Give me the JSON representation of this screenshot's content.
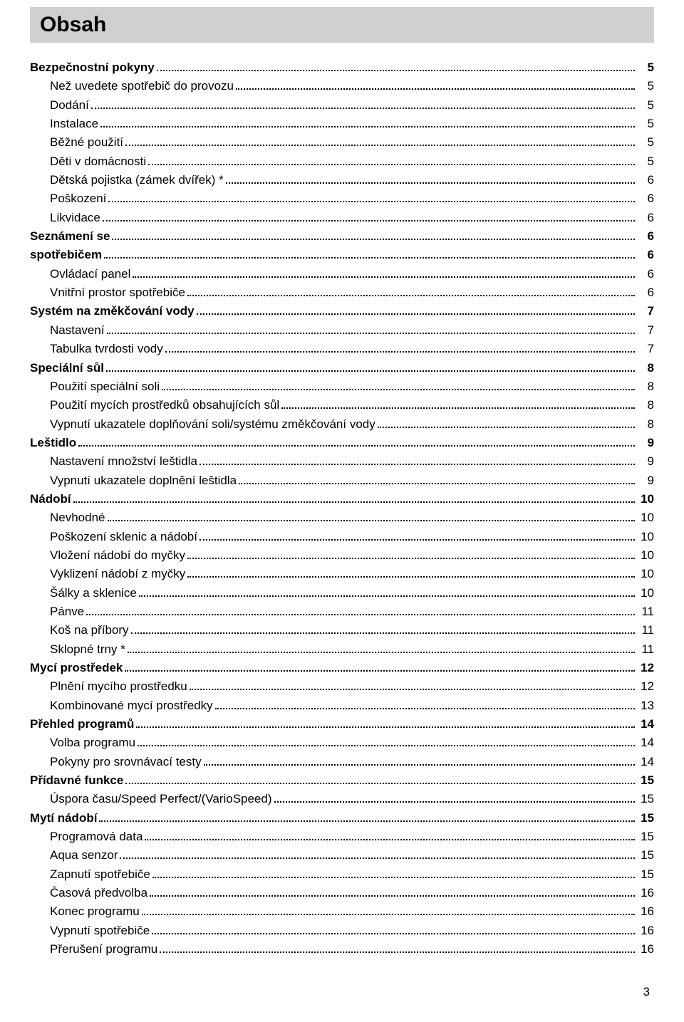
{
  "title": "Obsah",
  "page_number": "3",
  "entries": [
    {
      "level": 0,
      "label": "Bezpečnostní pokyny",
      "page": "5"
    },
    {
      "level": 1,
      "label": "Než uvedete spotřebič do provozu",
      "page": "5"
    },
    {
      "level": 1,
      "label": "Dodání",
      "page": "5"
    },
    {
      "level": 1,
      "label": "Instalace",
      "page": "5"
    },
    {
      "level": 1,
      "label": "Běžné použití",
      "page": "5"
    },
    {
      "level": 1,
      "label": "Děti v domácnosti",
      "page": "5"
    },
    {
      "level": 1,
      "label": "Dětská pojistka (zámek dvířek) *",
      "page": "6"
    },
    {
      "level": 1,
      "label": "Poškození",
      "page": "6"
    },
    {
      "level": 1,
      "label": "Likvidace",
      "page": "6"
    },
    {
      "level": 0,
      "label": "Seznámení se",
      "page": "6"
    },
    {
      "level": 0,
      "label": "spotřebičem",
      "page": "6"
    },
    {
      "level": 1,
      "label": "Ovládací panel",
      "page": "6"
    },
    {
      "level": 1,
      "label": "Vnitřní prostor spotřebiče",
      "page": "6"
    },
    {
      "level": 0,
      "label": "Systém na změkčování vody",
      "page": "7"
    },
    {
      "level": 1,
      "label": "Nastavení",
      "page": "7"
    },
    {
      "level": 1,
      "label": "Tabulka tvrdosti vody",
      "page": "7"
    },
    {
      "level": 0,
      "label": "Speciální sůl",
      "page": "8"
    },
    {
      "level": 1,
      "label": "Použití speciální soli",
      "page": "8"
    },
    {
      "level": 1,
      "label": "Použití mycích prostředků obsahujících sůl",
      "page": "8"
    },
    {
      "level": 1,
      "label": "Vypnutí ukazatele doplňování soli/systému změkčování vody",
      "page": "8"
    },
    {
      "level": 0,
      "label": "Leštidlo",
      "page": "9"
    },
    {
      "level": 1,
      "label": "Nastavení množství leštidla",
      "page": "9"
    },
    {
      "level": 1,
      "label": "Vypnutí ukazatele doplnění leštidla",
      "page": "9"
    },
    {
      "level": 0,
      "label": "Nádobí",
      "page": "10"
    },
    {
      "level": 1,
      "label": "Nevhodné",
      "page": "10"
    },
    {
      "level": 1,
      "label": "Poškození sklenic a nádobí",
      "page": "10"
    },
    {
      "level": 1,
      "label": "Vložení nádobí do myčky",
      "page": "10"
    },
    {
      "level": 1,
      "label": "Vyklizení nádobí z myčky",
      "page": "10"
    },
    {
      "level": 1,
      "label": "Šálky a sklenice",
      "page": "10"
    },
    {
      "level": 1,
      "label": "Pánve",
      "page": "11"
    },
    {
      "level": 1,
      "label": "Koš na příbory",
      "page": "11"
    },
    {
      "level": 1,
      "label": "Sklopné trny *",
      "page": "11"
    },
    {
      "level": 0,
      "label": "Mycí prostředek",
      "page": "12"
    },
    {
      "level": 1,
      "label": "Plnění mycího prostředku",
      "page": "12"
    },
    {
      "level": 1,
      "label": "Kombinované mycí prostředky",
      "page": "13"
    },
    {
      "level": 0,
      "label": "Přehled programů",
      "page": "14"
    },
    {
      "level": 1,
      "label": "Volba programu",
      "page": "14"
    },
    {
      "level": 1,
      "label": "Pokyny pro srovnávací testy",
      "page": "14"
    },
    {
      "level": 0,
      "label": "Přídavné funkce",
      "page": "15"
    },
    {
      "level": 1,
      "label": "Úspora času/Speed Perfect/(VarioSpeed)",
      "page": "15"
    },
    {
      "level": 0,
      "label": "Mytí nádobí",
      "page": "15"
    },
    {
      "level": 1,
      "label": "Programová data",
      "page": "15"
    },
    {
      "level": 1,
      "label": "Aqua senzor",
      "page": "15"
    },
    {
      "level": 1,
      "label": "Zapnutí spotřebiče",
      "page": "15"
    },
    {
      "level": 1,
      "label": "Časová předvolba",
      "page": "16"
    },
    {
      "level": 1,
      "label": "Konec programu",
      "page": "16"
    },
    {
      "level": 1,
      "label": "Vypnutí spotřebiče",
      "page": "16"
    },
    {
      "level": 1,
      "label": "Přerušení programu",
      "page": "16"
    }
  ]
}
